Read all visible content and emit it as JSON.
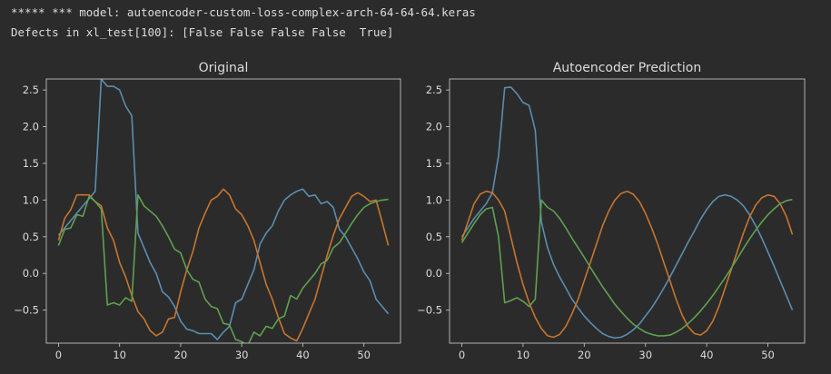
{
  "console": {
    "line1": "***** *** model: autoencoder-custom-loss-complex-arch-64-64-64.keras",
    "line2": "Defects in xl_test[100]: [False False False False  True]"
  },
  "colors": {
    "background": "#2b2b2b",
    "text": "#dcdcdc",
    "axis": "#bfbfbf",
    "blue": "#5b8db0",
    "orange": "#c8752e",
    "green": "#5fa150"
  },
  "chart_data": [
    {
      "type": "line",
      "title": "Original",
      "xlim": [
        -2,
        56
      ],
      "ylim": [
        -0.95,
        2.65
      ],
      "xticks": [
        0,
        10,
        20,
        30,
        40,
        50
      ],
      "yticks": [
        -0.5,
        0.0,
        0.5,
        1.0,
        1.5,
        2.0,
        2.5
      ],
      "xtick_labels": [
        "0",
        "10",
        "20",
        "30",
        "40",
        "50"
      ],
      "ytick_labels": [
        "−0.5",
        "0.0",
        "0.5",
        "1.0",
        "1.5",
        "2.0",
        "2.5"
      ],
      "grid": false,
      "series": [
        {
          "color": "blue",
          "values": [
            0.52,
            0.62,
            0.72,
            0.82,
            0.92,
            1.02,
            1.12,
            2.65,
            2.55,
            2.55,
            2.5,
            2.28,
            2.15,
            0.55,
            0.35,
            0.15,
            0.0,
            -0.25,
            -0.32,
            -0.45,
            -0.65,
            -0.76,
            -0.78,
            -0.82,
            -0.82,
            -0.82,
            -0.9,
            -0.8,
            -0.72,
            -0.4,
            -0.35,
            -0.15,
            0.05,
            0.4,
            0.55,
            0.65,
            0.85,
            1.0,
            1.07,
            1.12,
            1.15,
            1.05,
            1.07,
            0.95,
            0.98,
            0.9,
            0.6,
            0.5,
            0.35,
            0.2,
            0.02,
            -0.1,
            -0.35,
            -0.45,
            -0.55
          ]
        },
        {
          "color": "orange",
          "values": [
            0.45,
            0.75,
            0.87,
            1.07,
            1.07,
            1.07,
            0.98,
            0.92,
            0.62,
            0.45,
            0.15,
            -0.05,
            -0.3,
            -0.52,
            -0.62,
            -0.78,
            -0.85,
            -0.8,
            -0.62,
            -0.6,
            -0.25,
            0.05,
            0.3,
            0.62,
            0.82,
            1.0,
            1.05,
            1.15,
            1.07,
            0.88,
            0.8,
            0.65,
            0.45,
            0.15,
            -0.15,
            -0.35,
            -0.6,
            -0.82,
            -0.88,
            -0.92,
            -0.75,
            -0.55,
            -0.35,
            -0.05,
            0.25,
            0.52,
            0.75,
            0.9,
            1.05,
            1.1,
            1.05,
            0.98,
            1.0,
            0.7,
            0.38
          ]
        },
        {
          "color": "green",
          "values": [
            0.38,
            0.6,
            0.62,
            0.8,
            0.78,
            1.05,
            0.98,
            0.88,
            -0.43,
            -0.4,
            -0.43,
            -0.33,
            -0.38,
            1.07,
            0.92,
            0.85,
            0.78,
            0.65,
            0.5,
            0.33,
            0.28,
            0.05,
            -0.08,
            -0.12,
            -0.35,
            -0.45,
            -0.48,
            -0.68,
            -0.7,
            -0.9,
            -0.93,
            -0.98,
            -0.8,
            -0.85,
            -0.72,
            -0.75,
            -0.62,
            -0.58,
            -0.3,
            -0.35,
            -0.2,
            -0.1,
            0.0,
            0.13,
            0.18,
            0.35,
            0.42,
            0.55,
            0.68,
            0.8,
            0.9,
            0.95,
            0.98,
            1.0,
            1.01
          ]
        }
      ]
    },
    {
      "type": "line",
      "title": "Autoencoder Prediction",
      "xlim": [
        -2,
        56
      ],
      "ylim": [
        -0.95,
        2.65
      ],
      "xticks": [
        0,
        10,
        20,
        30,
        40,
        50
      ],
      "yticks": [
        -0.5,
        0.0,
        0.5,
        1.0,
        1.5,
        2.0,
        2.5
      ],
      "xtick_labels": [
        "0",
        "10",
        "20",
        "30",
        "40",
        "50"
      ],
      "ytick_labels": [
        "−0.5",
        "0.0",
        "0.5",
        "1.0",
        "1.5",
        "2.0",
        "2.5"
      ],
      "grid": false,
      "series": [
        {
          "color": "blue",
          "values": [
            0.5,
            0.62,
            0.75,
            0.85,
            0.95,
            1.1,
            1.6,
            2.53,
            2.54,
            2.45,
            2.33,
            2.29,
            1.95,
            0.7,
            0.35,
            0.12,
            -0.05,
            -0.2,
            -0.35,
            -0.47,
            -0.58,
            -0.67,
            -0.75,
            -0.82,
            -0.86,
            -0.88,
            -0.87,
            -0.83,
            -0.77,
            -0.69,
            -0.58,
            -0.47,
            -0.34,
            -0.2,
            -0.05,
            0.11,
            0.27,
            0.43,
            0.58,
            0.74,
            0.87,
            0.98,
            1.05,
            1.07,
            1.05,
            1.0,
            0.92,
            0.8,
            0.65,
            0.48,
            0.29,
            0.1,
            -0.1,
            -0.3,
            -0.5
          ]
        },
        {
          "color": "orange",
          "values": [
            0.45,
            0.7,
            0.95,
            1.08,
            1.12,
            1.1,
            1.0,
            0.85,
            0.5,
            0.15,
            -0.15,
            -0.4,
            -0.6,
            -0.75,
            -0.85,
            -0.87,
            -0.83,
            -0.72,
            -0.55,
            -0.35,
            -0.1,
            0.15,
            0.4,
            0.65,
            0.85,
            1.0,
            1.09,
            1.12,
            1.08,
            0.98,
            0.82,
            0.62,
            0.4,
            0.15,
            -0.1,
            -0.35,
            -0.57,
            -0.73,
            -0.82,
            -0.84,
            -0.78,
            -0.65,
            -0.45,
            -0.2,
            0.05,
            0.3,
            0.55,
            0.77,
            0.93,
            1.03,
            1.07,
            1.05,
            0.95,
            0.78,
            0.53
          ]
        },
        {
          "color": "green",
          "values": [
            0.42,
            0.55,
            0.68,
            0.8,
            0.88,
            0.9,
            0.5,
            -0.4,
            -0.37,
            -0.33,
            -0.38,
            -0.45,
            -0.35,
            1.0,
            0.9,
            0.85,
            0.75,
            0.62,
            0.48,
            0.35,
            0.22,
            0.08,
            -0.05,
            -0.18,
            -0.3,
            -0.42,
            -0.52,
            -0.61,
            -0.69,
            -0.75,
            -0.8,
            -0.83,
            -0.85,
            -0.85,
            -0.84,
            -0.8,
            -0.75,
            -0.68,
            -0.6,
            -0.51,
            -0.41,
            -0.3,
            -0.18,
            -0.06,
            0.07,
            0.2,
            0.34,
            0.47,
            0.59,
            0.7,
            0.8,
            0.88,
            0.95,
            0.99,
            1.01
          ]
        }
      ]
    }
  ]
}
